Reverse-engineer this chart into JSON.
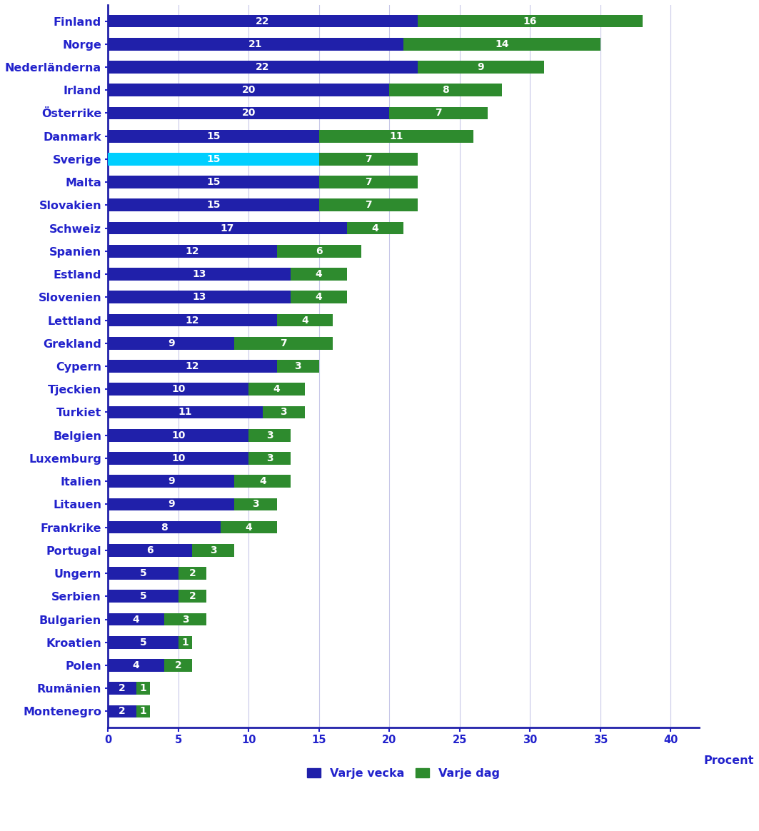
{
  "countries": [
    "Finland",
    "Norge",
    "Nederländerna",
    "Irland",
    "Österrike",
    "Danmark",
    "Sverige",
    "Malta",
    "Slovakien",
    "Schweiz",
    "Spanien",
    "Estland",
    "Slovenien",
    "Lettland",
    "Grekland",
    "Cypern",
    "Tjeckien",
    "Turkiet",
    "Belgien",
    "Luxemburg",
    "Italien",
    "Litauen",
    "Frankrike",
    "Portugal",
    "Ungern",
    "Serbien",
    "Bulgarien",
    "Kroatien",
    "Polen",
    "Rumänien",
    "Montenegro"
  ],
  "varje_vecka": [
    22,
    21,
    22,
    20,
    20,
    15,
    15,
    15,
    15,
    17,
    12,
    13,
    13,
    12,
    9,
    12,
    10,
    11,
    10,
    10,
    9,
    9,
    8,
    6,
    5,
    5,
    4,
    5,
    4,
    2,
    2
  ],
  "varje_dag": [
    16,
    14,
    9,
    8,
    7,
    11,
    7,
    7,
    7,
    4,
    6,
    4,
    4,
    4,
    7,
    3,
    4,
    3,
    3,
    3,
    4,
    3,
    4,
    3,
    2,
    2,
    3,
    1,
    2,
    1,
    1
  ],
  "sverige_color": "#00cfff",
  "vecka_color": "#2020aa",
  "dag_color": "#2e8b2e",
  "label_color": "#2222cc",
  "axis_color": "#2222aa",
  "background_color": "#ffffff",
  "grid_color": "#c8c8e8",
  "bar_height": 0.55,
  "xlim": [
    0,
    42
  ],
  "xticks": [
    0,
    5,
    10,
    15,
    20,
    25,
    30,
    35,
    40
  ],
  "xlabel": "Procent",
  "legend_labels": [
    "Varje vecka",
    "Varje dag"
  ],
  "label_fontsize": 11.5,
  "tick_fontsize": 10.5,
  "bar_label_fontsize": 10
}
